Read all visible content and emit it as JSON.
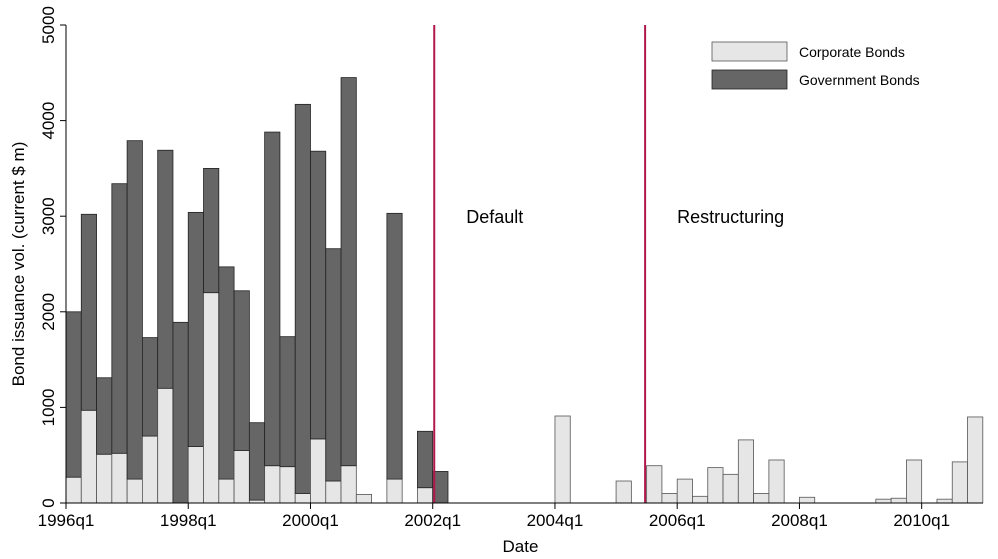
{
  "chart_data": {
    "type": "bar",
    "stacked": true,
    "title": "",
    "xlabel": "Date",
    "ylabel": "Bond issuance vol. (current $ m)",
    "ylim": [
      0,
      5000
    ],
    "y_ticks": [
      0,
      1000,
      2000,
      3000,
      4000,
      5000
    ],
    "x_ticks": [
      "1996q1",
      "1998q1",
      "2000q1",
      "2002q1",
      "2004q1",
      "2006q1",
      "2008q1",
      "2010q1"
    ],
    "grid": false,
    "legend_position": "top-right",
    "categories": [
      "1996q1",
      "1996q2",
      "1996q3",
      "1996q4",
      "1997q1",
      "1997q2",
      "1997q3",
      "1997q4",
      "1998q1",
      "1998q2",
      "1998q3",
      "1998q4",
      "1999q1",
      "1999q2",
      "1999q3",
      "1999q4",
      "2000q1",
      "2000q2",
      "2000q3",
      "2000q4",
      "2001q1",
      "2001q2",
      "2001q3",
      "2001q4",
      "2002q1",
      "2002q2",
      "2002q3",
      "2002q4",
      "2003q1",
      "2003q2",
      "2003q3",
      "2003q4",
      "2004q1",
      "2004q2",
      "2004q3",
      "2004q4",
      "2005q1",
      "2005q2",
      "2005q3",
      "2005q4",
      "2006q1",
      "2006q2",
      "2006q3",
      "2006q4",
      "2007q1",
      "2007q2",
      "2007q3",
      "2007q4",
      "2008q1",
      "2008q2",
      "2008q3",
      "2008q4",
      "2009q1",
      "2009q2",
      "2009q3",
      "2009q4",
      "2010q1",
      "2010q2",
      "2010q3",
      "2010q4"
    ],
    "series": [
      {
        "name": "Corporate Bonds",
        "color": "#e6e6e6",
        "values": [
          270,
          970,
          510,
          520,
          250,
          700,
          1200,
          0,
          590,
          2200,
          250,
          550,
          30,
          390,
          380,
          100,
          670,
          230,
          390,
          90,
          0,
          250,
          0,
          160,
          0,
          0,
          0,
          0,
          0,
          0,
          0,
          0,
          910,
          0,
          0,
          0,
          230,
          0,
          390,
          100,
          250,
          70,
          370,
          300,
          660,
          100,
          450,
          0,
          60,
          0,
          0,
          0,
          0,
          40,
          50,
          450,
          0,
          40,
          430,
          900
        ]
      },
      {
        "name": "Government Bonds",
        "color": "#666666",
        "values": [
          1730,
          2050,
          800,
          2820,
          3540,
          1030,
          2490,
          1890,
          2450,
          1300,
          2220,
          1670,
          810,
          3490,
          1360,
          4070,
          3010,
          2430,
          4060,
          0,
          0,
          2780,
          0,
          590,
          330,
          0,
          0,
          0,
          0,
          0,
          0,
          0,
          0,
          0,
          0,
          0,
          0,
          0,
          0,
          0,
          0,
          0,
          0,
          0,
          0,
          0,
          0,
          0,
          0,
          0,
          0,
          0,
          0,
          0,
          0,
          0,
          0,
          0,
          0,
          0
        ]
      }
    ],
    "annotations": [
      {
        "label": "Default",
        "at": "2002q1",
        "line_color": "#b0174a"
      },
      {
        "label": "Restructuring",
        "at": "2005q2",
        "line_color": "#b0174a"
      }
    ]
  }
}
